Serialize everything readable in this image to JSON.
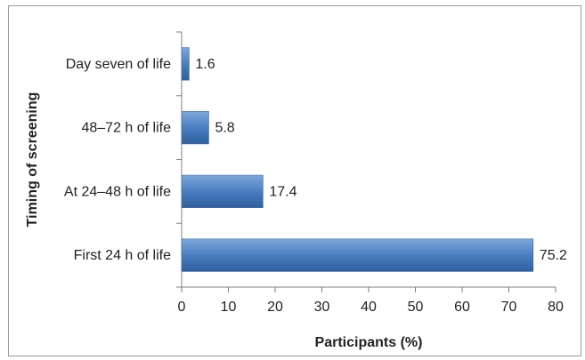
{
  "chart_data": {
    "type": "bar",
    "orientation": "horizontal",
    "categories": [
      "First 24 h of life",
      "At 24–48 h of life",
      "48–72 h of life",
      "Day seven of life"
    ],
    "values": [
      75.2,
      17.4,
      5.8,
      1.6
    ],
    "data_labels": [
      "75.2",
      "17.4",
      "5.8",
      "1.6"
    ],
    "xlabel": "Participants (%)",
    "ylabel": "Timing of screening",
    "xlim": [
      0,
      80
    ],
    "xticks": [
      0,
      10,
      20,
      30,
      40,
      50,
      60,
      70,
      80
    ],
    "grid": false,
    "legend": "none",
    "bar_color": "#4a7ec0"
  }
}
